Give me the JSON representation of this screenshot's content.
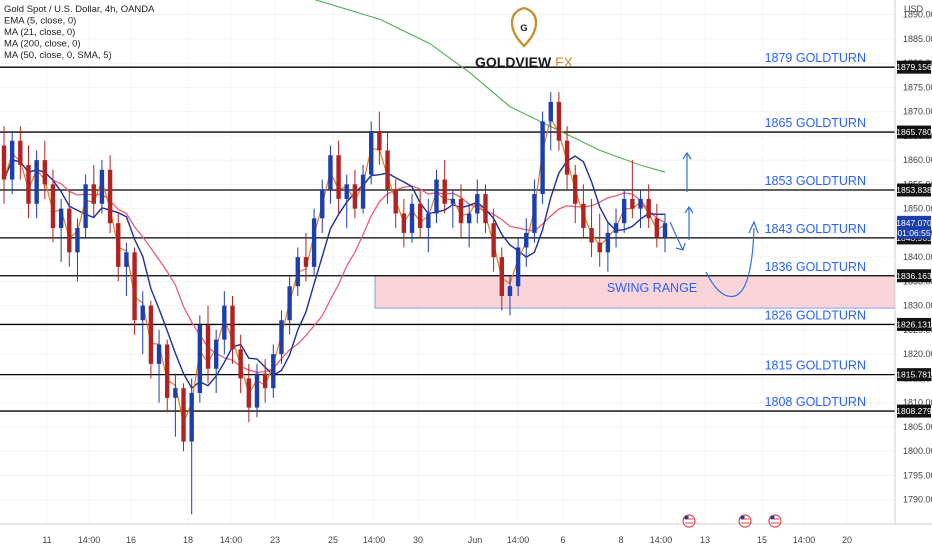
{
  "legend": [
    "Gold Spot / U.S. Dollar, 4h, OANDA",
    "EMA (5, close, 0)",
    "MA (21, close, 0)",
    "MA (200, close, 0)",
    "MA (50, close, 0, SMA, 5)"
  ],
  "brand": {
    "name_main": "GOLDVIEW",
    "name_suffix": "FX",
    "logo_letter": "G",
    "accent": "#c9902f"
  },
  "axis": {
    "currency": "USD"
  },
  "annotations": {
    "swing_range": "SWING RANGE"
  },
  "colors": {
    "up": "#1c3fae",
    "down": "#b22222",
    "ema5": "#e87a1e",
    "ma21": "#1b2f9e",
    "ma200": "#4caf50",
    "ma50": "#ec5a78",
    "level_text": "#2962ff",
    "range_fill": "#f8c9d1"
  },
  "chart_data": {
    "type": "candlestick",
    "title": "Gold Spot / U.S. Dollar, 4h, OANDA",
    "ylim": [
      1785,
      1893
    ],
    "y_ticks": [
      "1890.000",
      "1885.000",
      "1880.000",
      "1875.000",
      "1870.000",
      "1865.000",
      "1860.000",
      "1855.000",
      "1850.000",
      "1845.000",
      "1840.000",
      "1835.000",
      "1830.000",
      "1825.000",
      "1820.000",
      "1815.000",
      "1810.000",
      "1805.000",
      "1800.000",
      "1795.000",
      "1790.000"
    ],
    "x_ticks": [
      "11",
      "14:00",
      "16",
      "18",
      "14:00",
      "23",
      "25",
      "14:00",
      "30",
      "Jun",
      "14:00",
      "6",
      "8",
      "14:00",
      "13",
      "15",
      "14:00",
      "20"
    ],
    "levels": [
      {
        "value": 1879.156,
        "tag": "1879.156",
        "label": "1879 GOLDTURN"
      },
      {
        "value": 1865.78,
        "tag": "1865.780",
        "label": "1865 GOLDTURN"
      },
      {
        "value": 1853.838,
        "tag": "1853.838",
        "label": "1853 GOLDTURN"
      },
      {
        "value": 1843.965,
        "tag": "1843.965",
        "label": "1843 GOLDTURN"
      },
      {
        "value": 1836.163,
        "tag": "1836.163",
        "label": "1836 GOLDTURN"
      },
      {
        "value": 1826.131,
        "tag": "1826.131",
        "label": "1826 GOLDTURN"
      },
      {
        "value": 1815.781,
        "tag": "1815.781",
        "label": "1815 GOLDTURN"
      },
      {
        "value": 1808.279,
        "tag": "1808.279",
        "label": "1808 GOLDTURN"
      }
    ],
    "current_price": {
      "value": 1847.07,
      "tag": "1847.070",
      "countdown": "01:06:55"
    },
    "swing_range": {
      "low": 1829.5,
      "high": 1836.163,
      "label": "SWING RANGE"
    },
    "candles": [
      [
        1863,
        1867,
        1851,
        1856
      ],
      [
        1856,
        1866,
        1853,
        1864
      ],
      [
        1864,
        1867,
        1856,
        1859
      ],
      [
        1859,
        1863,
        1848,
        1851
      ],
      [
        1851,
        1862,
        1848,
        1860
      ],
      [
        1860,
        1864,
        1852,
        1855
      ],
      [
        1855,
        1858,
        1843,
        1846
      ],
      [
        1846,
        1852,
        1839,
        1850
      ],
      [
        1850,
        1854,
        1838,
        1841
      ],
      [
        1841,
        1848,
        1835,
        1846
      ],
      [
        1846,
        1857,
        1844,
        1855
      ],
      [
        1855,
        1859,
        1848,
        1851
      ],
      [
        1851,
        1860,
        1849,
        1858
      ],
      [
        1858,
        1861,
        1845,
        1847
      ],
      [
        1847,
        1849,
        1835,
        1838
      ],
      [
        1838,
        1843,
        1832,
        1841
      ],
      [
        1841,
        1842,
        1824,
        1827
      ],
      [
        1827,
        1833,
        1820,
        1830
      ],
      [
        1830,
        1831,
        1815,
        1818
      ],
      [
        1818,
        1825,
        1810,
        1822
      ],
      [
        1822,
        1823,
        1808,
        1811
      ],
      [
        1811,
        1816,
        1803,
        1813
      ],
      [
        1813,
        1814,
        1800,
        1802
      ],
      [
        1802,
        1815,
        1787,
        1812
      ],
      [
        1812,
        1828,
        1810,
        1826
      ],
      [
        1826,
        1830,
        1814,
        1817
      ],
      [
        1817,
        1825,
        1812,
        1823
      ],
      [
        1823,
        1833,
        1820,
        1830
      ],
      [
        1830,
        1832,
        1818,
        1821
      ],
      [
        1821,
        1824,
        1812,
        1815
      ],
      [
        1815,
        1818,
        1806,
        1809
      ],
      [
        1809,
        1818,
        1807,
        1816
      ],
      [
        1816,
        1819,
        1810,
        1813
      ],
      [
        1813,
        1822,
        1811,
        1820
      ],
      [
        1820,
        1829,
        1818,
        1827
      ],
      [
        1827,
        1836,
        1824,
        1834
      ],
      [
        1834,
        1842,
        1832,
        1840
      ],
      [
        1840,
        1845,
        1835,
        1838
      ],
      [
        1838,
        1850,
        1836,
        1848
      ],
      [
        1848,
        1856,
        1845,
        1854
      ],
      [
        1854,
        1863,
        1851,
        1861
      ],
      [
        1861,
        1864,
        1849,
        1852
      ],
      [
        1852,
        1857,
        1846,
        1855
      ],
      [
        1855,
        1858,
        1848,
        1850
      ],
      [
        1850,
        1859,
        1849,
        1857
      ],
      [
        1857,
        1868,
        1855,
        1866
      ],
      [
        1866,
        1870,
        1859,
        1862
      ],
      [
        1862,
        1866,
        1851,
        1854
      ],
      [
        1854,
        1856,
        1846,
        1849
      ],
      [
        1849,
        1852,
        1842,
        1845
      ],
      [
        1845,
        1853,
        1843,
        1851
      ],
      [
        1851,
        1854,
        1844,
        1846
      ],
      [
        1846,
        1852,
        1841,
        1849
      ],
      [
        1849,
        1858,
        1847,
        1856
      ],
      [
        1856,
        1860,
        1849,
        1851
      ],
      [
        1851,
        1854,
        1846,
        1852
      ],
      [
        1852,
        1855,
        1844,
        1847
      ],
      [
        1847,
        1851,
        1842,
        1849
      ],
      [
        1849,
        1856,
        1847,
        1853
      ],
      [
        1853,
        1855,
        1845,
        1847
      ],
      [
        1847,
        1850,
        1837,
        1840
      ],
      [
        1840,
        1842,
        1829,
        1832
      ],
      [
        1832,
        1836,
        1828,
        1834
      ],
      [
        1834,
        1844,
        1832,
        1842
      ],
      [
        1842,
        1848,
        1838,
        1845
      ],
      [
        1845,
        1856,
        1843,
        1853
      ],
      [
        1853,
        1870,
        1851,
        1868
      ],
      [
        1868,
        1874,
        1862,
        1872
      ],
      [
        1872,
        1874,
        1862,
        1864
      ],
      [
        1864,
        1867,
        1854,
        1857
      ],
      [
        1857,
        1859,
        1847,
        1851
      ],
      [
        1851,
        1855,
        1844,
        1846
      ],
      [
        1846,
        1852,
        1840,
        1843
      ],
      [
        1843,
        1849,
        1838,
        1841
      ],
      [
        1841,
        1847,
        1837,
        1845
      ],
      [
        1845,
        1850,
        1842,
        1847
      ],
      [
        1847,
        1854,
        1845,
        1852
      ],
      [
        1852,
        1860,
        1848,
        1850
      ],
      [
        1850,
        1854,
        1846,
        1852
      ],
      [
        1852,
        1855,
        1846,
        1848
      ],
      [
        1848,
        1851,
        1842,
        1844
      ],
      [
        1844,
        1849,
        1841,
        1847
      ]
    ]
  }
}
